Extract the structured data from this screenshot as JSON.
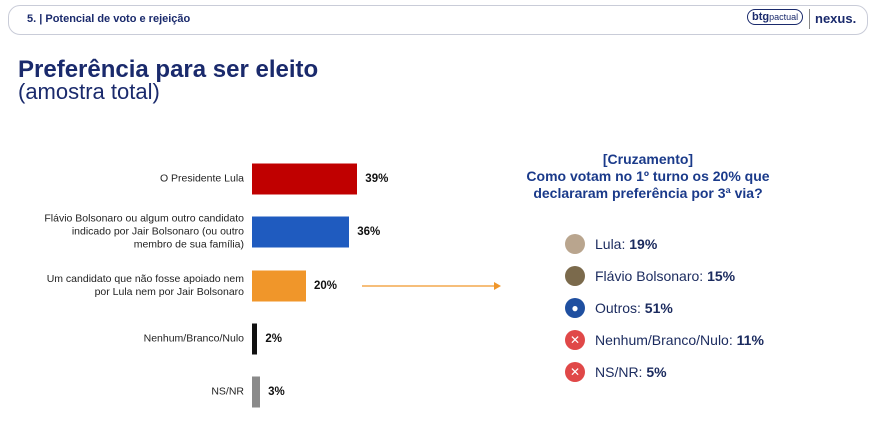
{
  "header": {
    "section": "5. | Potencial de voto e rejeição",
    "brand1": "btg",
    "brand2": "pactual",
    "brand3": "nexus."
  },
  "chart_data": {
    "type": "bar",
    "title": "Preferência para ser eleito",
    "subtitle": "(amostra total)",
    "categories": [
      "O Presidente Lula",
      "Flávio Bolsonaro ou algum outro candidato indicado por Jair Bolsonaro (ou outro membro de sua família)",
      "Um candidato que não fosse apoiado nem por Lula nem por Jair Bolsonaro",
      "Nenhum/Branco/Nulo",
      "NS/NR"
    ],
    "values": [
      39,
      36,
      20,
      2,
      3
    ],
    "value_labels": [
      "39%",
      "36%",
      "20%",
      "2%",
      "3%"
    ],
    "colors": [
      "#c00000",
      "#1f5bbf",
      "#f0962a",
      "#111111",
      "#8a8a8a"
    ]
  },
  "crossing": {
    "tag": "[Cruzamento]",
    "question": "Como votam no 1º turno os 20% que declararam preferência por 3ª via?",
    "items": [
      {
        "label": "Lula:",
        "value": "19%"
      },
      {
        "label": "Flávio Bolsonaro:",
        "value": "15%"
      },
      {
        "label": "Outros:",
        "value": "51%"
      },
      {
        "label": "Nenhum/Branco/Nulo:",
        "value": "11%"
      },
      {
        "label": "NS/NR:",
        "value": "5%"
      }
    ]
  }
}
